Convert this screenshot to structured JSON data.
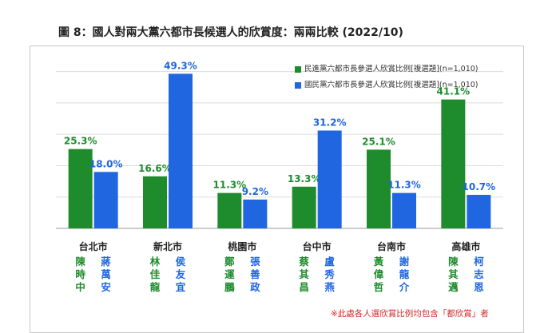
{
  "title": "圖 8：國人對兩大黨六都市長候選人的欣賞度：兩兩比較 (2022/10)",
  "note": "※此處各人選欣賞比例均包含「都欣賞」者",
  "colors": {
    "dpp": "#1e8c2c",
    "kmt": "#1f66e0",
    "grid": "#dcdcdc"
  },
  "chart_data": {
    "type": "bar",
    "title": "圖 8：國人對兩大黨六都市長候選人的欣賞度：兩兩比較 (2022/10)",
    "categories": [
      "台北市",
      "新北市",
      "桃園市",
      "台中市",
      "台南市",
      "高雄市"
    ],
    "ylim": [
      0,
      55
    ],
    "grid": true,
    "legend_position": "top-right",
    "series": [
      {
        "name": "民進黨六都市長參選人欣賞比例[複選題](n=1,010)",
        "values": [
          25.3,
          16.6,
          11.3,
          13.3,
          25.1,
          41.1
        ],
        "labels": [
          "25.3%",
          "16.6%",
          "11.3%",
          "13.3%",
          "25.1%",
          "41.1%"
        ],
        "candidates": [
          "陳時中",
          "林佳龍",
          "鄭運鵬",
          "蔡其昌",
          "黃偉哲",
          "陳其邁"
        ]
      },
      {
        "name": "國民黨六都市長參選人欣賞比例[複選題](n=1,010)",
        "values": [
          18.0,
          49.3,
          9.2,
          31.2,
          11.3,
          10.7
        ],
        "labels": [
          "18.0%",
          "49.3%",
          "9.2%",
          "31.2%",
          "11.3%",
          "10.7%"
        ],
        "candidates": [
          "蔣萬安",
          "侯友宜",
          "張善政",
          "盧秀燕",
          "謝龍介",
          "柯志恩"
        ]
      }
    ]
  }
}
